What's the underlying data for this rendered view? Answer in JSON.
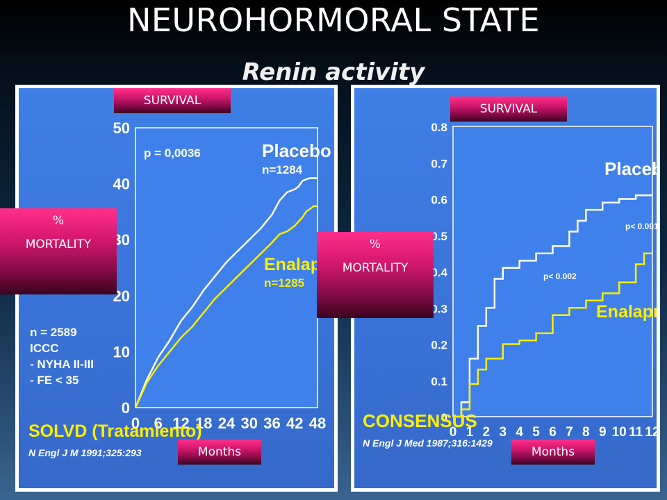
{
  "slide": {
    "title": "NEUROHORMORAL STATE",
    "subtitle": "Renin activity"
  },
  "labels": {
    "survival": "SURVIVAL",
    "percent": "%",
    "mortality": "MORTALITY",
    "months": "Months"
  },
  "colors": {
    "panel_blue": "#3b74da",
    "placebo": "#ffffff",
    "enalapril": "#ffee00",
    "label_magenta": "#d6186f"
  },
  "chart_data": [
    {
      "type": "line",
      "title": "SOLVD (Tratamiento)",
      "xlabel": "Months",
      "ylabel": "% MORTALITY",
      "x_ticks": [
        "0",
        "6",
        "12",
        "18",
        "24",
        "30",
        "36",
        "42",
        "48"
      ],
      "y_ticks": [
        "0",
        "10",
        "20",
        "30",
        "40",
        "50"
      ],
      "xlim": [
        0,
        48
      ],
      "ylim": [
        0,
        50
      ],
      "grid": false,
      "annotations": {
        "pvalue": "p = 0,0036",
        "study_info": [
          "n = 2589",
          "ICCC",
          "- NYHA II-III",
          "- FE < 35"
        ],
        "citation": "N Engl J M 1991;325:293"
      },
      "series": [
        {
          "name": "Placebo",
          "sub": "n=1284",
          "color": "#ffffff",
          "x": [
            0,
            3,
            6,
            9,
            12,
            15,
            18,
            21,
            24,
            27,
            30,
            33,
            36,
            38,
            40,
            42,
            43,
            44,
            45,
            46,
            47,
            48
          ],
          "y": [
            0,
            5,
            9,
            12,
            15.5,
            18,
            21,
            23.5,
            26,
            28,
            30,
            32,
            34.5,
            37,
            38.5,
            39,
            39.5,
            40.5,
            40.8,
            41,
            41,
            41
          ]
        },
        {
          "name": "Enalapril",
          "sub": "n=1285",
          "color": "#ffee00",
          "x": [
            0,
            3,
            6,
            9,
            12,
            15,
            18,
            21,
            24,
            27,
            30,
            33,
            36,
            38,
            40,
            42,
            44,
            45,
            46,
            47,
            48
          ],
          "y": [
            0,
            4.5,
            7.5,
            10,
            12.5,
            14.5,
            17,
            19.5,
            21.5,
            23.5,
            25.5,
            27.5,
            29.5,
            31,
            31.5,
            32.5,
            34,
            35,
            35.5,
            36,
            36
          ]
        }
      ]
    },
    {
      "type": "line",
      "title": "CONSENSUS",
      "xlabel": "Months",
      "ylabel": "% MORTALITY",
      "x_ticks": [
        "0",
        "1",
        "2",
        "3",
        "4",
        "5",
        "6",
        "7",
        "8",
        "9",
        "10",
        "11",
        "12"
      ],
      "y_ticks": [
        "0",
        "0.1",
        "0.2",
        "0.3",
        "0.4",
        "0.5",
        "0.6",
        "0.7",
        "0.8"
      ],
      "xlim": [
        0,
        12
      ],
      "ylim": [
        0,
        0.8
      ],
      "grid": false,
      "annotations": {
        "p_late": "p< 0.001",
        "p_early": "p< 0.002",
        "citation": "N Engl J Med 1987;316:1429"
      },
      "series": [
        {
          "name": "Placebo",
          "color": "#ffffff",
          "x": [
            0,
            0.5,
            1,
            1.5,
            2,
            2.5,
            3,
            4,
            5,
            6,
            7,
            7.5,
            8,
            9,
            10,
            11,
            12
          ],
          "y": [
            0,
            0.04,
            0.16,
            0.25,
            0.3,
            0.38,
            0.41,
            0.43,
            0.45,
            0.47,
            0.51,
            0.54,
            0.57,
            0.59,
            0.6,
            0.61,
            0.61
          ]
        },
        {
          "name": "Enalapril",
          "color": "#ffee00",
          "x": [
            0,
            0.5,
            1,
            1.5,
            2,
            3,
            4,
            5,
            6,
            7,
            8,
            9,
            10,
            11,
            11.5,
            12
          ],
          "y": [
            0,
            0.02,
            0.09,
            0.13,
            0.16,
            0.2,
            0.21,
            0.23,
            0.28,
            0.3,
            0.32,
            0.34,
            0.37,
            0.42,
            0.45,
            0.45
          ]
        }
      ]
    }
  ]
}
